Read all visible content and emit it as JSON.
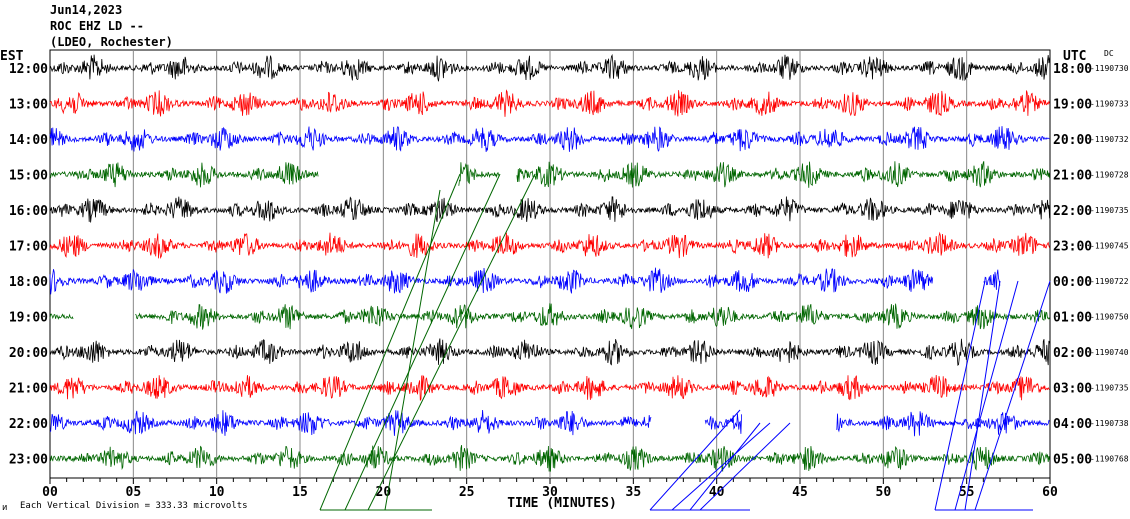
{
  "header": {
    "date": "Jun14,2023",
    "station": "ROC EHZ LD --",
    "network": "(LDEO, Rochester)"
  },
  "chart_data": {
    "type": "line",
    "title": "Jun14,2023 ROC EHZ LD -- (LDEO, Rochester)",
    "left_axis_label": "EST",
    "right_axis_label": "UTC",
    "dc_label": "DC",
    "xlabel": "TIME (MINUTES)",
    "xlim": [
      0,
      60
    ],
    "x_ticks": [
      "00",
      "05",
      "10",
      "15",
      "20",
      "25",
      "30",
      "35",
      "40",
      "45",
      "50",
      "55",
      "60"
    ],
    "scale_note": "Each Vertical Division =  333.33 microvolts",
    "corner_mark": "ᴎ",
    "trace_colors": [
      "#000000",
      "#ff0000",
      "#0000ff",
      "#006600"
    ],
    "rows": [
      {
        "est": "12:00",
        "utc": "18:00",
        "dc": "-1190730",
        "gaps": []
      },
      {
        "est": "13:00",
        "utc": "19:00",
        "dc": "-1190733",
        "gaps": []
      },
      {
        "est": "14:00",
        "utc": "20:00",
        "dc": "-1190732",
        "gaps": []
      },
      {
        "est": "15:00",
        "utc": "21:00",
        "dc": "-1190728",
        "gaps": [
          [
            16.1,
            24.5
          ],
          [
            27.0,
            28.0
          ]
        ]
      },
      {
        "est": "16:00",
        "utc": "22:00",
        "dc": "-1190735",
        "gaps": []
      },
      {
        "est": "17:00",
        "utc": "23:00",
        "dc": "-1190745",
        "gaps": []
      },
      {
        "est": "18:00",
        "utc": "00:00",
        "dc": "-1190722",
        "gaps": [
          [
            53.0,
            56.0
          ],
          [
            57.0,
            60.0
          ]
        ]
      },
      {
        "est": "19:00",
        "utc": "01:00",
        "dc": "-1190750",
        "gaps": [
          [
            1.4,
            5.1
          ]
        ]
      },
      {
        "est": "20:00",
        "utc": "02:00",
        "dc": "-1190740",
        "gaps": []
      },
      {
        "est": "21:00",
        "utc": "03:00",
        "dc": "-1190735",
        "gaps": []
      },
      {
        "est": "22:00",
        "utc": "04:00",
        "dc": "-1190738",
        "gaps": [
          [
            36.1,
            39.3
          ],
          [
            41.5,
            47.2
          ]
        ]
      },
      {
        "est": "23:00",
        "utc": "05:00",
        "dc": "-1190768",
        "gaps": []
      }
    ],
    "grid": true
  }
}
